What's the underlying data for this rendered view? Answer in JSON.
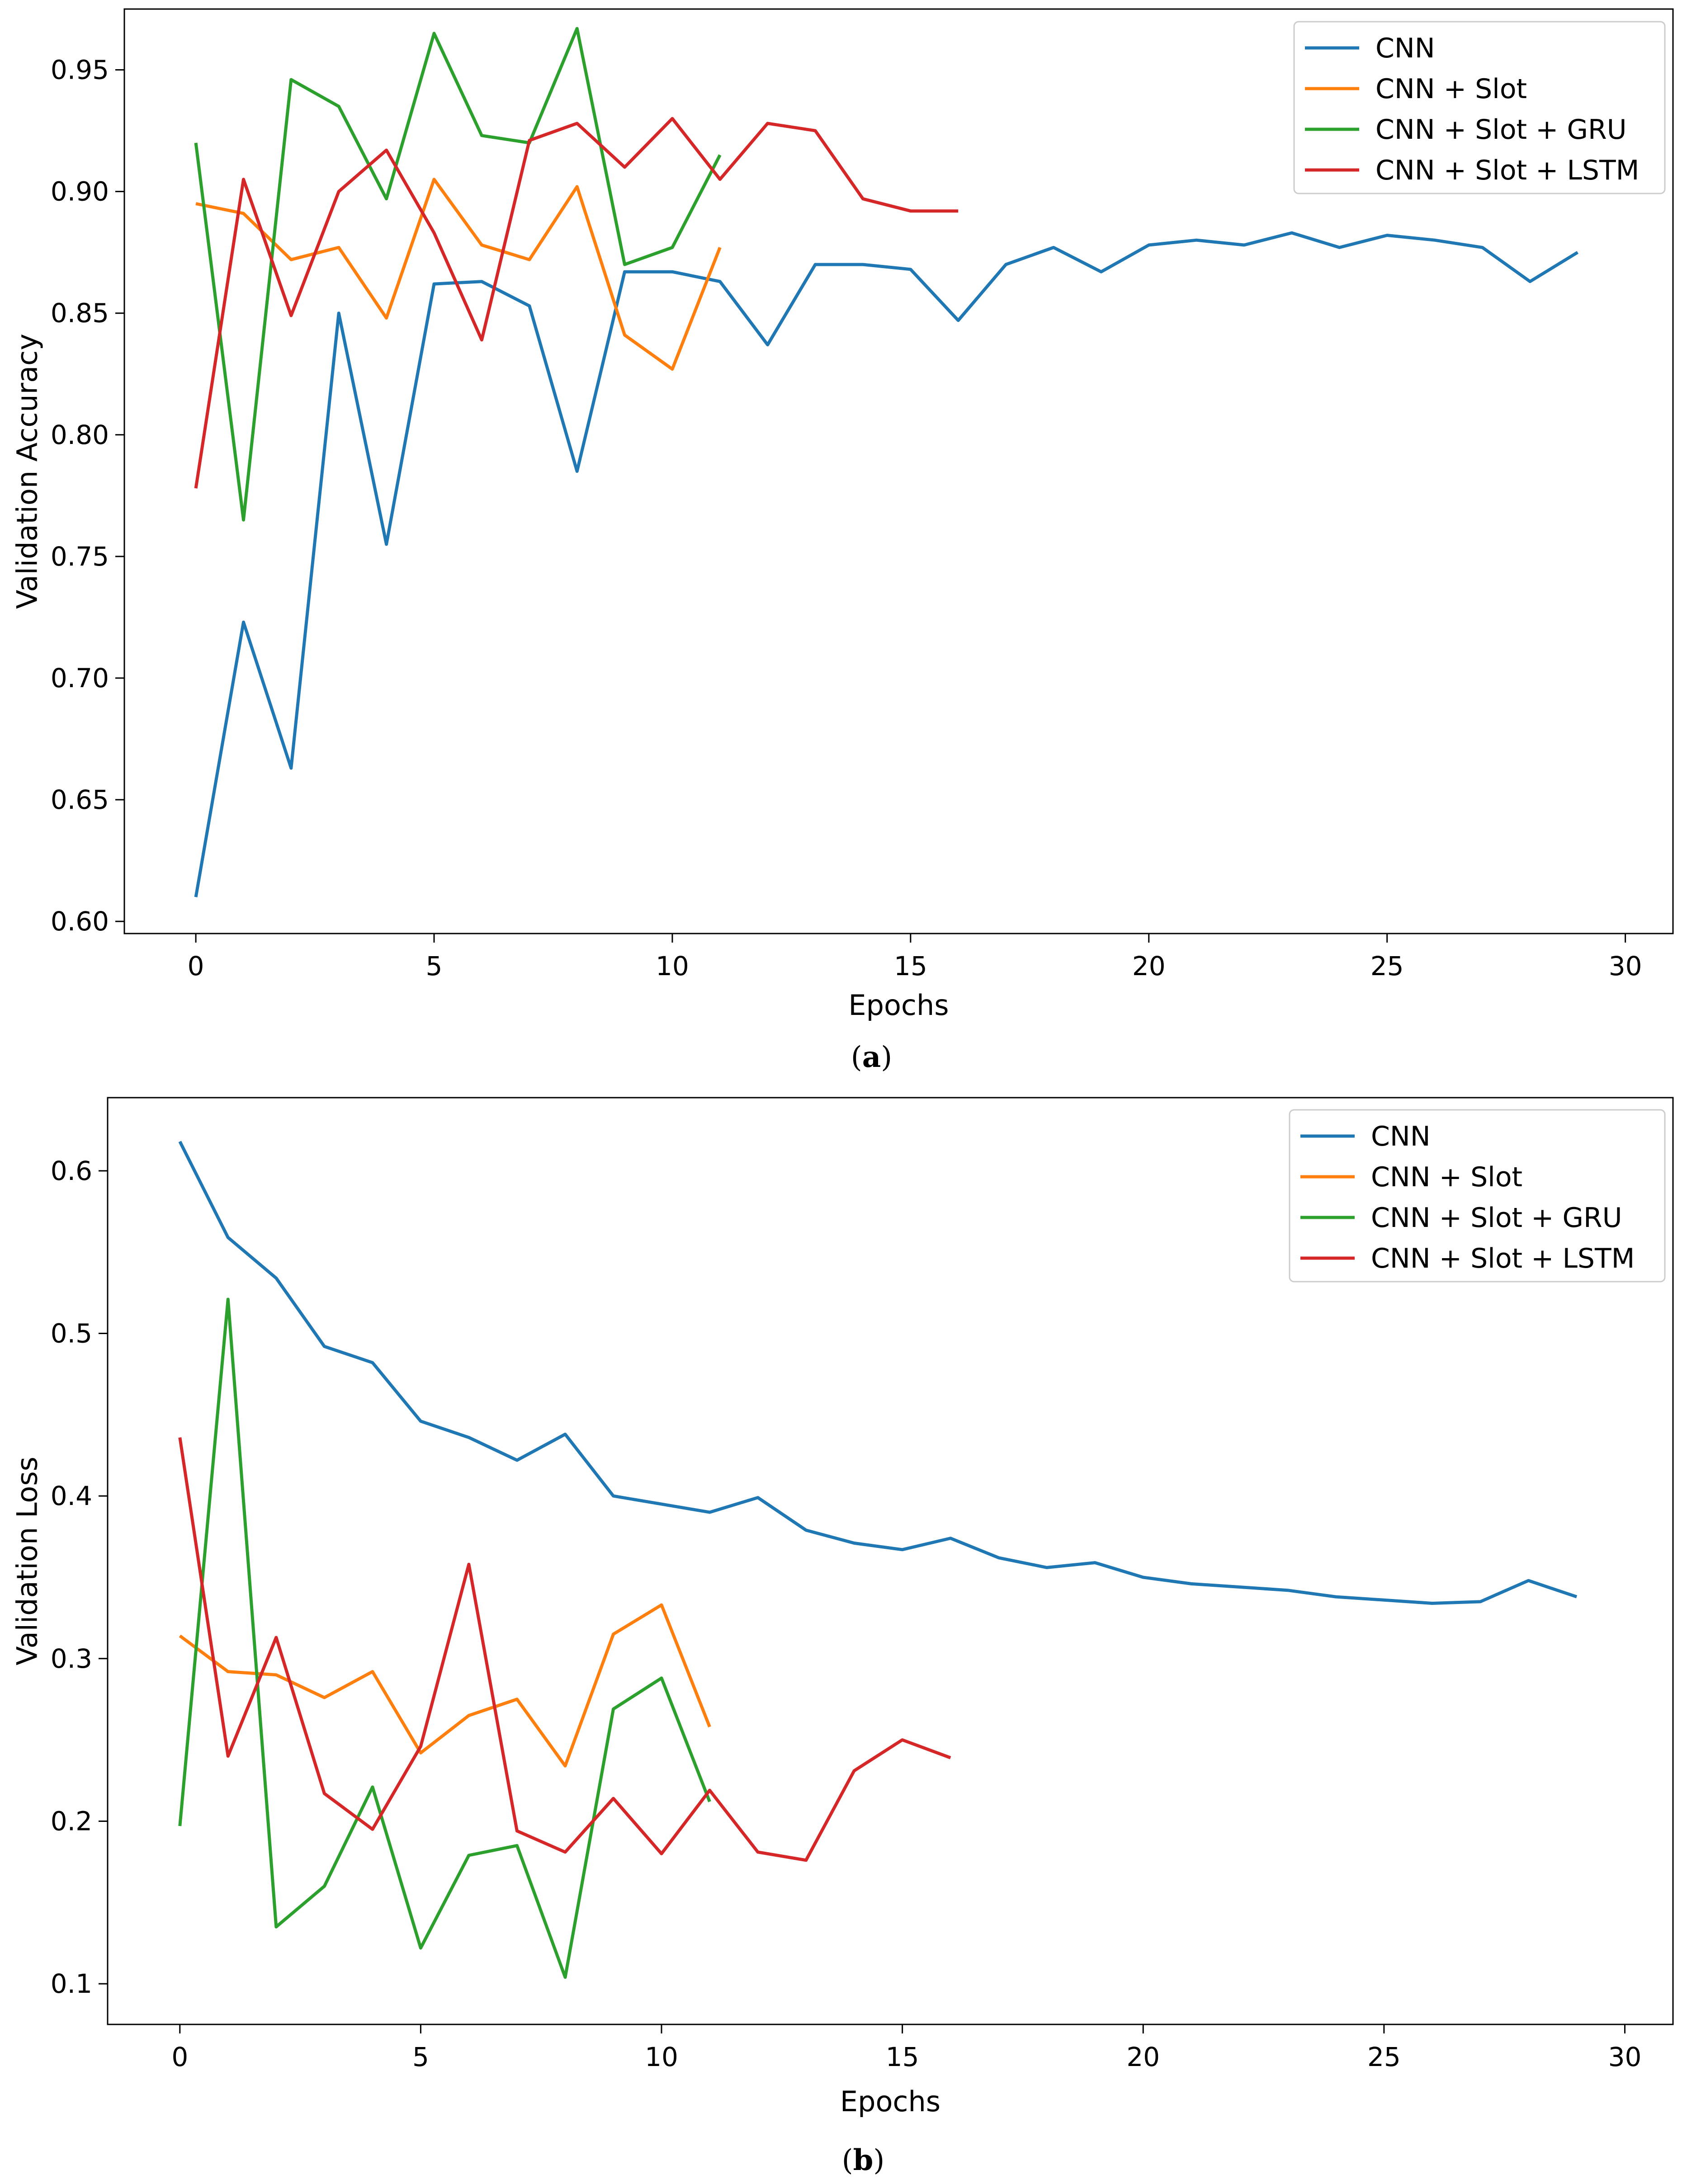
{
  "chart_data": [
    {
      "type": "line",
      "id": "a",
      "caption": {
        "open": "(",
        "letter": "a",
        "close": ")"
      },
      "xlabel": "Epochs",
      "ylabel": "Validation Accuracy",
      "xlim": [
        -1.5,
        31
      ],
      "ylim": [
        0.595,
        0.975
      ],
      "xticks": [
        0,
        5,
        10,
        15,
        20,
        25,
        30
      ],
      "yticks": [
        0.6,
        0.65,
        0.7,
        0.75,
        0.8,
        0.85,
        0.9,
        0.95
      ],
      "ytick_labels": [
        "0.60",
        "0.65",
        "0.70",
        "0.75",
        "0.80",
        "0.85",
        "0.90",
        "0.95"
      ],
      "legend_position": "top-right",
      "series": [
        {
          "name": "CNN",
          "color": "#1f77b4",
          "x": [
            0,
            1,
            2,
            3,
            4,
            5,
            6,
            7,
            8,
            9,
            10,
            11,
            12,
            13,
            14,
            15,
            16,
            17,
            18,
            19,
            20,
            21,
            22,
            23,
            24,
            25,
            26,
            27,
            28,
            29
          ],
          "values": [
            0.61,
            0.723,
            0.663,
            0.85,
            0.755,
            0.862,
            0.863,
            0.853,
            0.785,
            0.867,
            0.867,
            0.863,
            0.837,
            0.87,
            0.87,
            0.868,
            0.847,
            0.87,
            0.877,
            0.867,
            0.878,
            0.88,
            0.878,
            0.883,
            0.877,
            0.882,
            0.88,
            0.877,
            0.863,
            0.875
          ]
        },
        {
          "name": "CNN + Slot",
          "color": "#ff7f0e",
          "x": [
            0,
            1,
            2,
            3,
            4,
            5,
            6,
            7,
            8,
            9,
            10,
            11
          ],
          "values": [
            0.895,
            0.891,
            0.872,
            0.877,
            0.848,
            0.905,
            0.878,
            0.872,
            0.902,
            0.841,
            0.827,
            0.877
          ]
        },
        {
          "name": "CNN + Slot + GRU",
          "color": "#2ca02c",
          "x": [
            0,
            1,
            2,
            3,
            4,
            5,
            6,
            7,
            8,
            9,
            10,
            11
          ],
          "values": [
            0.92,
            0.765,
            0.946,
            0.935,
            0.897,
            0.965,
            0.923,
            0.92,
            0.967,
            0.87,
            0.877,
            0.915
          ]
        },
        {
          "name": "CNN + Slot + LSTM",
          "color": "#d62728",
          "x": [
            0,
            1,
            2,
            3,
            4,
            5,
            6,
            7,
            8,
            9,
            10,
            11,
            12,
            13,
            14,
            15,
            16
          ],
          "values": [
            0.778,
            0.905,
            0.849,
            0.9,
            0.917,
            0.883,
            0.839,
            0.921,
            0.928,
            0.91,
            0.93,
            0.905,
            0.928,
            0.925,
            0.897,
            0.892,
            0.892
          ]
        }
      ]
    },
    {
      "type": "line",
      "id": "b",
      "caption": {
        "open": "(",
        "letter": "b",
        "close": ")"
      },
      "xlabel": "Epochs",
      "ylabel": "Validation Loss",
      "xlim": [
        -1.5,
        31
      ],
      "ylim": [
        0.075,
        0.645
      ],
      "xticks": [
        0,
        5,
        10,
        15,
        20,
        25,
        30
      ],
      "yticks": [
        0.1,
        0.2,
        0.3,
        0.4,
        0.5,
        0.6
      ],
      "ytick_labels": [
        "0.1",
        "0.2",
        "0.3",
        "0.4",
        "0.5",
        "0.6"
      ],
      "legend_position": "top-right",
      "series": [
        {
          "name": "CNN",
          "color": "#1f77b4",
          "x": [
            0,
            1,
            2,
            3,
            4,
            5,
            6,
            7,
            8,
            9,
            10,
            11,
            12,
            13,
            14,
            15,
            16,
            17,
            18,
            19,
            20,
            21,
            22,
            23,
            24,
            25,
            26,
            27,
            28,
            29
          ],
          "values": [
            0.618,
            0.559,
            0.534,
            0.492,
            0.482,
            0.446,
            0.436,
            0.422,
            0.438,
            0.4,
            0.395,
            0.39,
            0.399,
            0.379,
            0.371,
            0.367,
            0.374,
            0.362,
            0.356,
            0.359,
            0.35,
            0.346,
            0.344,
            0.342,
            0.338,
            0.336,
            0.334,
            0.335,
            0.348,
            0.338
          ]
        },
        {
          "name": "CNN + Slot",
          "color": "#ff7f0e",
          "x": [
            0,
            1,
            2,
            3,
            4,
            5,
            6,
            7,
            8,
            9,
            10,
            11
          ],
          "values": [
            0.314,
            0.292,
            0.29,
            0.276,
            0.292,
            0.242,
            0.265,
            0.275,
            0.234,
            0.315,
            0.333,
            0.258
          ]
        },
        {
          "name": "CNN + Slot + GRU",
          "color": "#2ca02c",
          "x": [
            0,
            1,
            2,
            3,
            4,
            5,
            6,
            7,
            8,
            9,
            10,
            11
          ],
          "values": [
            0.197,
            0.521,
            0.135,
            0.16,
            0.221,
            0.122,
            0.179,
            0.185,
            0.104,
            0.269,
            0.288,
            0.212
          ]
        },
        {
          "name": "CNN + Slot + LSTM",
          "color": "#d62728",
          "x": [
            0,
            1,
            2,
            3,
            4,
            5,
            6,
            7,
            8,
            9,
            10,
            11,
            12,
            13,
            14,
            15,
            16
          ],
          "values": [
            0.436,
            0.24,
            0.313,
            0.217,
            0.195,
            0.246,
            0.358,
            0.194,
            0.181,
            0.214,
            0.18,
            0.219,
            0.181,
            0.176,
            0.231,
            0.25,
            0.239
          ]
        }
      ]
    }
  ]
}
